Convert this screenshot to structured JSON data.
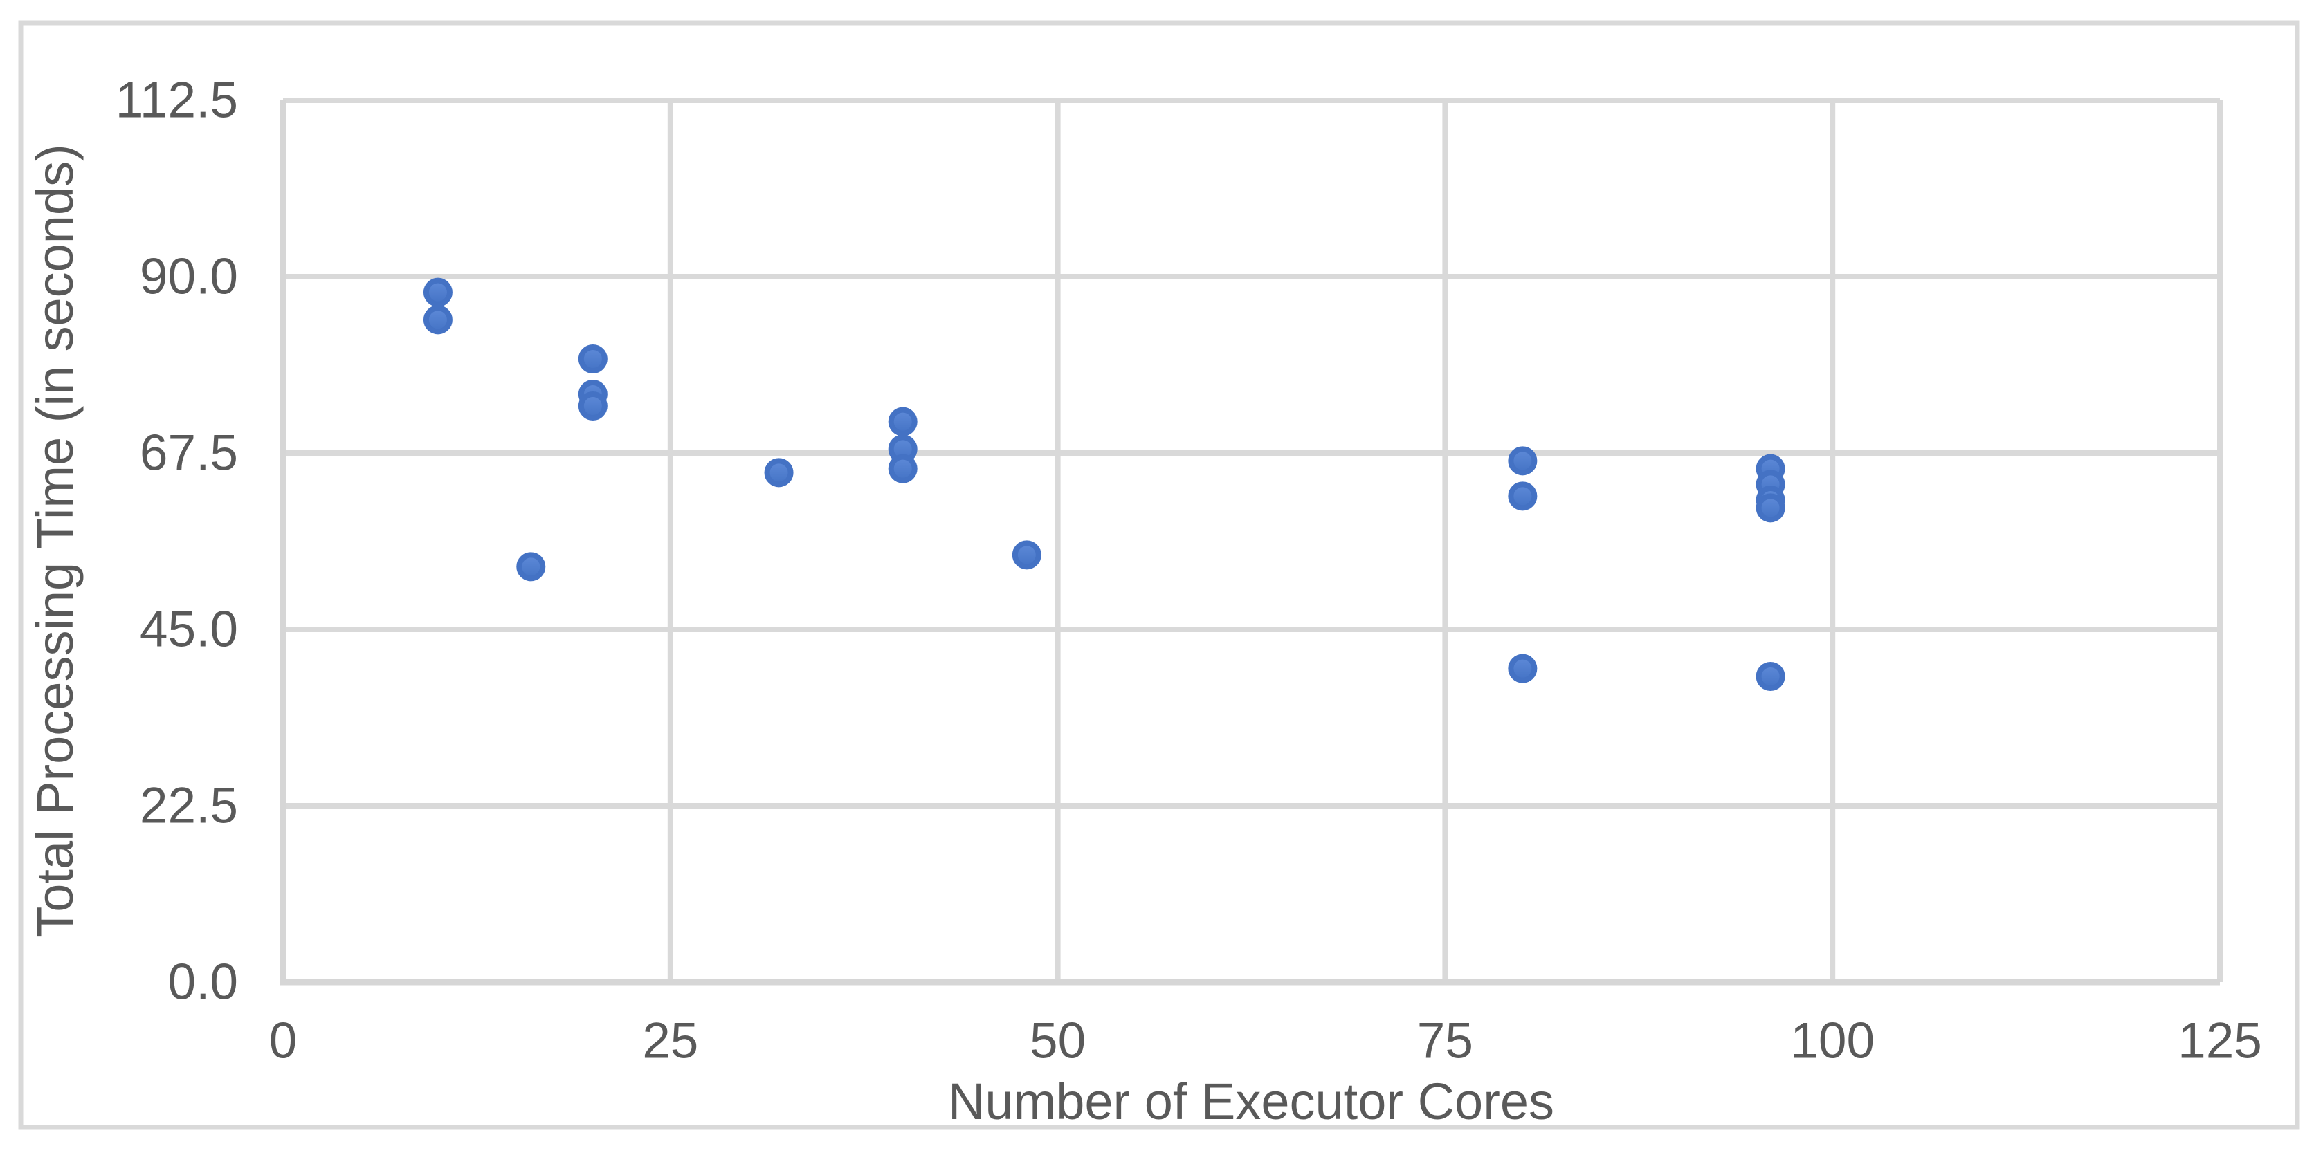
{
  "chart_data": {
    "type": "scatter",
    "title": "",
    "xlabel": "Number of Executor Cores",
    "ylabel": "Total Processing Time (in seconds)",
    "xlim": [
      0,
      125
    ],
    "ylim": [
      0,
      112.5
    ],
    "x_ticks": [
      0,
      25,
      50,
      75,
      100,
      125
    ],
    "x_tick_labels": [
      "0",
      "25",
      "50",
      "75",
      "100",
      "125"
    ],
    "y_ticks": [
      0,
      22.5,
      45,
      67.5,
      90,
      112.5
    ],
    "y_tick_labels": [
      "0.0",
      "22.5",
      "45.0",
      "67.5",
      "90.0",
      "112.5"
    ],
    "grid": true,
    "legend": false,
    "series": [
      {
        "points": [
          {
            "x": 10,
            "y": 88
          },
          {
            "x": 10,
            "y": 84.5
          },
          {
            "x": 16,
            "y": 53
          },
          {
            "x": 20,
            "y": 79.5
          },
          {
            "x": 20,
            "y": 75
          },
          {
            "x": 20,
            "y": 73.5
          },
          {
            "x": 32,
            "y": 65
          },
          {
            "x": 40,
            "y": 71.5
          },
          {
            "x": 40,
            "y": 68
          },
          {
            "x": 40,
            "y": 65.5
          },
          {
            "x": 48,
            "y": 54.5
          },
          {
            "x": 80,
            "y": 66.5
          },
          {
            "x": 80,
            "y": 62
          },
          {
            "x": 80,
            "y": 40
          },
          {
            "x": 96,
            "y": 65.5
          },
          {
            "x": 96,
            "y": 63.5
          },
          {
            "x": 96,
            "y": 61.5
          },
          {
            "x": 96,
            "y": 60.5
          },
          {
            "x": 96,
            "y": 39
          }
        ]
      }
    ],
    "colors": {
      "marker_fill_top": "#5e8ad8",
      "marker_fill_bottom": "#4473c5",
      "marker_edge": "#4472c4",
      "gridline": "#d9d9d9",
      "axis_line": "#d6d6d6",
      "figure_border": "#d9d9d9",
      "axis_text": "#595959"
    }
  }
}
